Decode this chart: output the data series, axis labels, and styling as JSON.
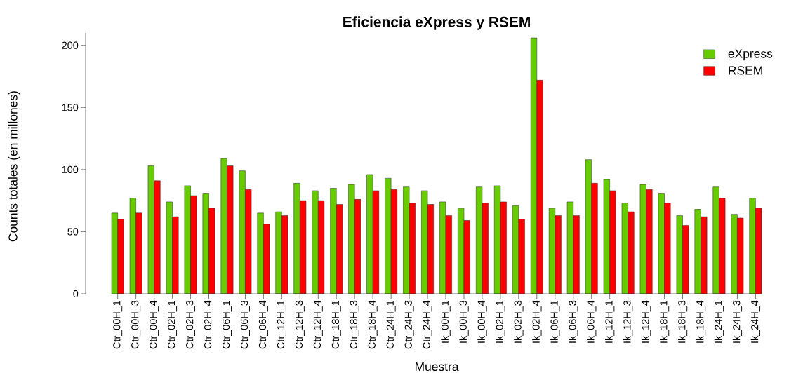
{
  "chart_data": {
    "type": "bar",
    "title": "Eficiencia eXpress y RSEM",
    "xlabel": "Muestra",
    "ylabel": "Counts totales (en millones)",
    "categories": [
      "Ctr_00H_1",
      "Ctr_00H_3",
      "Ctr_00H_4",
      "Ctr_02H_1",
      "Ctr_02H_3",
      "Ctr_02H_4",
      "Ctr_06H_1",
      "Ctr_06H_3",
      "Ctr_06H_4",
      "Ctr_12H_1",
      "Ctr_12H_3",
      "Ctr_12H_4",
      "Ctr_18H_1",
      "Ctr_18H_3",
      "Ctr_18H_4",
      "Ctr_24H_1",
      "Ctr_24H_3",
      "Ctr_24H_4",
      "Ik_00H_1",
      "Ik_00H_3",
      "Ik_00H_4",
      "Ik_02H_1",
      "Ik_02H_3",
      "Ik_02H_4",
      "Ik_06H_1",
      "Ik_06H_3",
      "Ik_06H_4",
      "Ik_12H_1",
      "Ik_12H_3",
      "Ik_12H_4",
      "Ik_18H_1",
      "Ik_18H_3",
      "Ik_18H_4",
      "Ik_24H_1",
      "Ik_24H_3",
      "Ik_24H_4"
    ],
    "series": [
      {
        "name": "eXpress",
        "color": "#66cc00",
        "values": [
          65,
          77,
          103,
          74,
          87,
          81,
          109,
          99,
          65,
          66,
          89,
          83,
          85,
          88,
          96,
          93,
          86,
          83,
          74,
          69,
          86,
          87,
          71,
          206,
          69,
          74,
          108,
          92,
          73,
          88,
          81,
          63,
          68,
          86,
          64,
          77
        ]
      },
      {
        "name": "RSEM",
        "color": "#ff0000",
        "values": [
          60,
          65,
          91,
          62,
          79,
          69,
          103,
          84,
          56,
          63,
          75,
          75,
          72,
          76,
          83,
          84,
          73,
          72,
          63,
          59,
          73,
          74,
          60,
          172,
          63,
          63,
          89,
          83,
          66,
          84,
          73,
          55,
          62,
          77,
          61,
          69
        ]
      }
    ],
    "ylim": [
      0,
      210
    ],
    "yticks": [
      0,
      50,
      100,
      150,
      200
    ],
    "legend": "top right"
  }
}
